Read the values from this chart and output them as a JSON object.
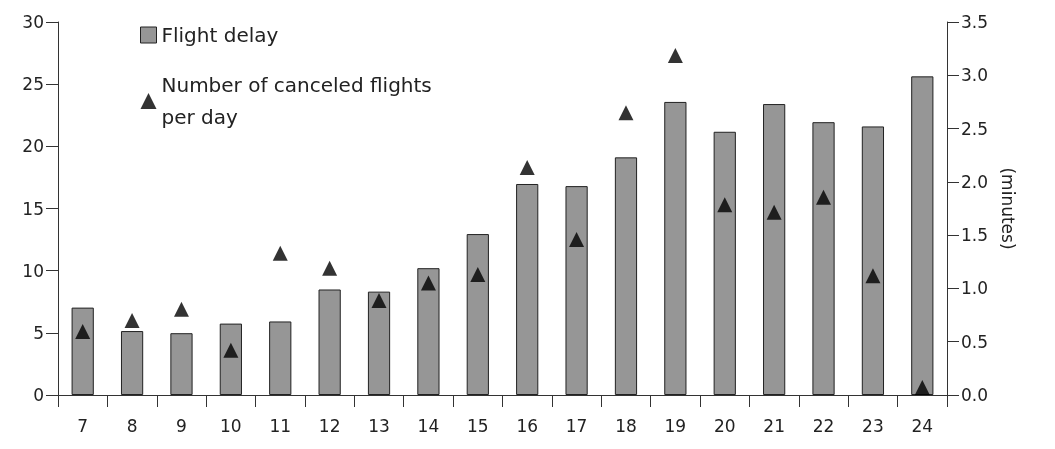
{
  "chart_data": {
    "type": "bar",
    "categories": [
      "7",
      "8",
      "9",
      "10",
      "11",
      "12",
      "13",
      "14",
      "15",
      "16",
      "17",
      "18",
      "19",
      "20",
      "21",
      "22",
      "23",
      "24"
    ],
    "series": [
      {
        "name": "Flight delay",
        "axis": "y2",
        "color": "#969696",
        "values": [
          0.82,
          0.6,
          0.58,
          0.67,
          0.69,
          0.99,
          0.97,
          1.19,
          1.51,
          1.98,
          1.96,
          2.23,
          2.75,
          2.47,
          2.73,
          2.56,
          2.52,
          2.99
        ]
      },
      {
        "name": "Number of canceled flights per day",
        "type": "scatter",
        "axis": "y",
        "marker": "triangle",
        "color": "#000000",
        "values": [
          5.1,
          6.0,
          6.9,
          3.6,
          11.4,
          10.2,
          7.6,
          9.0,
          9.7,
          18.3,
          12.5,
          22.7,
          27.3,
          15.3,
          14.7,
          15.9,
          9.6,
          0.6
        ]
      }
    ],
    "y2label": "(minutes)",
    "ylim": [
      0,
      30
    ],
    "yticks": [
      0,
      5,
      10,
      15,
      20,
      25,
      30
    ],
    "y2lim": [
      0,
      3.5
    ],
    "y2ticks": [
      {
        "value": 0,
        "label": "0.0"
      },
      {
        "value": 0.5,
        "label": "0.5"
      },
      {
        "value": 1,
        "label": "1.0"
      },
      {
        "value": 1.5,
        "label": "1.5"
      },
      {
        "value": 2,
        "label": "2.0"
      },
      {
        "value": 2.5,
        "label": "2.5"
      },
      {
        "value": 3,
        "label": "3.0"
      },
      {
        "value": 3.5,
        "label": "3.5"
      }
    ],
    "grid": false,
    "legend": "top left"
  }
}
